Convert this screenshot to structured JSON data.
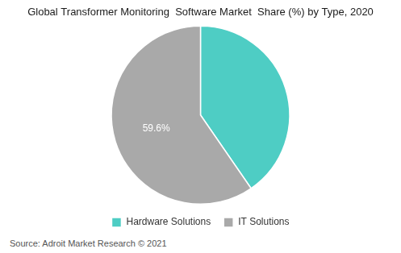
{
  "chart_data": {
    "type": "pie",
    "title": "Global Transformer Monitoring  Software Market  Share (%) by Type, 2020",
    "categories": [
      "Hardware Solutions",
      "IT Solutions"
    ],
    "values": [
      40.4,
      59.6
    ],
    "colors": [
      "#4ECDC4",
      "#A9A9A9"
    ],
    "data_labels": true,
    "value_labels": [
      null,
      "59.6%"
    ],
    "legend": "bottom",
    "annotations": [
      "Source: Adroit Market Research © 2021"
    ]
  }
}
